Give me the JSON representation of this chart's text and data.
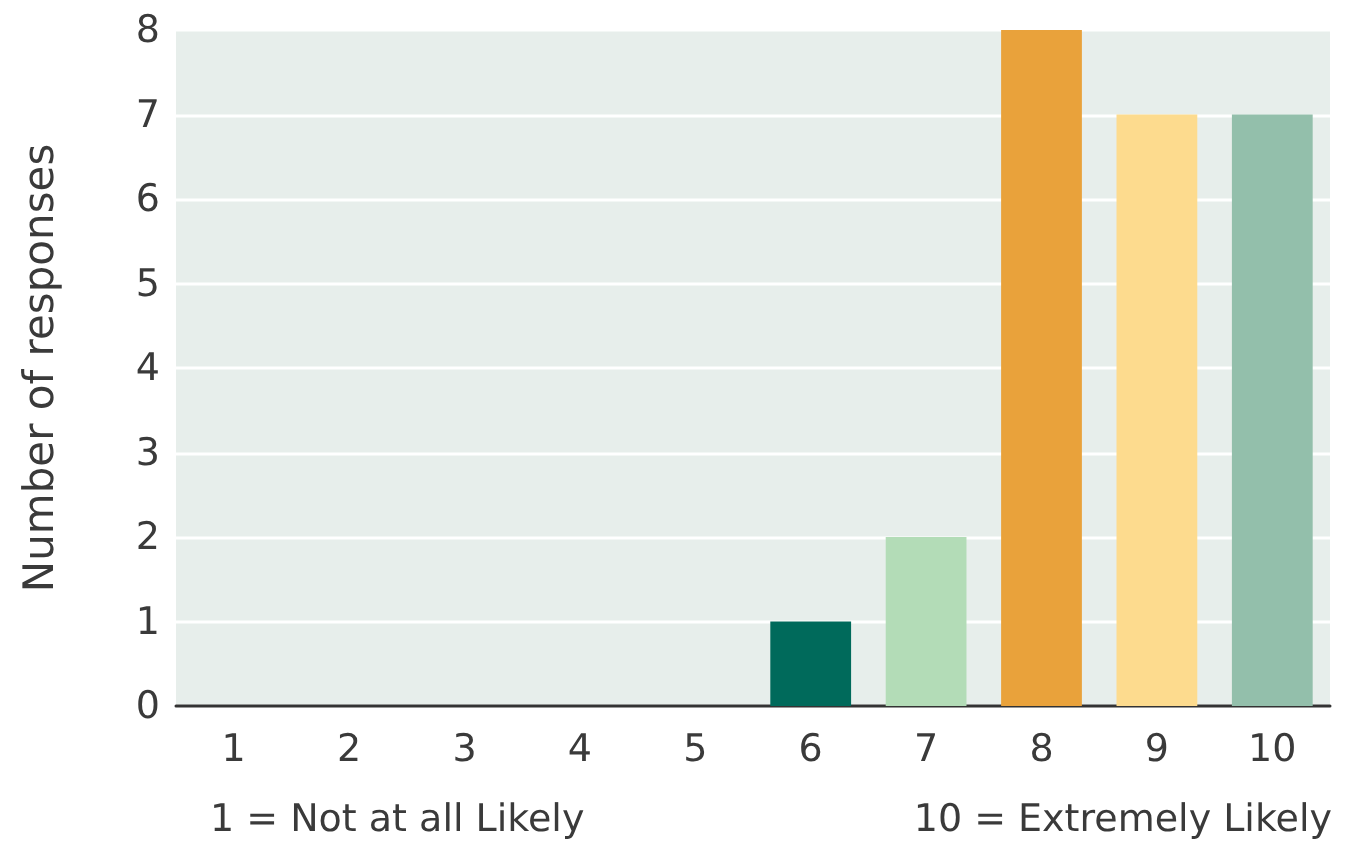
{
  "chart_data": {
    "type": "bar",
    "ylabel": "Number of responses",
    "categories": [
      "1",
      "2",
      "3",
      "4",
      "5",
      "6",
      "7",
      "8",
      "9",
      "10"
    ],
    "values": [
      0,
      0,
      0,
      0,
      0,
      1,
      2,
      8,
      7,
      7
    ],
    "colors": [
      "#006a5b",
      "#006a5b",
      "#006a5b",
      "#006a5b",
      "#006a5b",
      "#006a5b",
      "#b3dcb7",
      "#e9a23b",
      "#fddb8e",
      "#93bfab"
    ],
    "ylim": [
      0,
      8
    ],
    "yticks": [
      0,
      1,
      2,
      3,
      4,
      5,
      6,
      7,
      8
    ],
    "grid": "y",
    "annotations": [
      "1 = Not at all Likely",
      "10 = Extremely Likely"
    ]
  }
}
